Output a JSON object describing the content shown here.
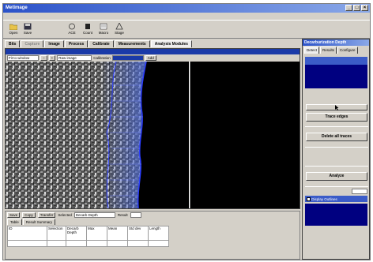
{
  "window": {
    "title": "Metimage"
  },
  "toolbar": {
    "tools": [
      {
        "label": "Open",
        "icon": "folder-open-icon"
      },
      {
        "label": "Save",
        "icon": "floppy-disk-icon"
      },
      {
        "label": "ACE",
        "icon": "ace-icon"
      },
      {
        "label": "Count",
        "icon": "count-icon"
      },
      {
        "label": "Macro",
        "icon": "macro-icon"
      },
      {
        "label": "Stage",
        "icon": "stage-icon"
      }
    ]
  },
  "tabs": [
    {
      "label": "Bits"
    },
    {
      "label": "Capture"
    },
    {
      "label": "Image"
    },
    {
      "label": "Process"
    },
    {
      "label": "Calibrate"
    },
    {
      "label": "Measurements"
    },
    {
      "label": "Analysis Modules",
      "active": true
    }
  ],
  "imagebar": {
    "fit_value": "Fit to window",
    "zoom_value": "Raw image",
    "calibration_label": "Calibration",
    "add_label": "Add"
  },
  "bottom": {
    "save_label": "Save",
    "copy_label": "Copy",
    "transfer_label": "Transfer",
    "selection_label": "Selected",
    "selection_value": "Decarb Depth",
    "result_label": "Result",
    "tabs": [
      {
        "label": "Table"
      },
      {
        "label": "Result Summary"
      }
    ],
    "table": {
      "headers": [
        "ID",
        "Selection",
        "Decarb Depth",
        "Max",
        "Mean",
        "Std dev",
        "Length"
      ],
      "rows": []
    }
  },
  "side": {
    "title": "Decarburization Depth",
    "tabs": [
      {
        "label": "Detect",
        "active": true
      },
      {
        "label": "Results"
      },
      {
        "label": "Configure"
      }
    ],
    "buttons": {
      "trace": "Trace edges",
      "delete": "Delete all traces",
      "analyze": "Analyze"
    },
    "checkbox_label": "Display Outlines"
  },
  "colors": {
    "accent": "#2b52c9",
    "trace": "#2a3cff",
    "help_box": "#000080"
  }
}
